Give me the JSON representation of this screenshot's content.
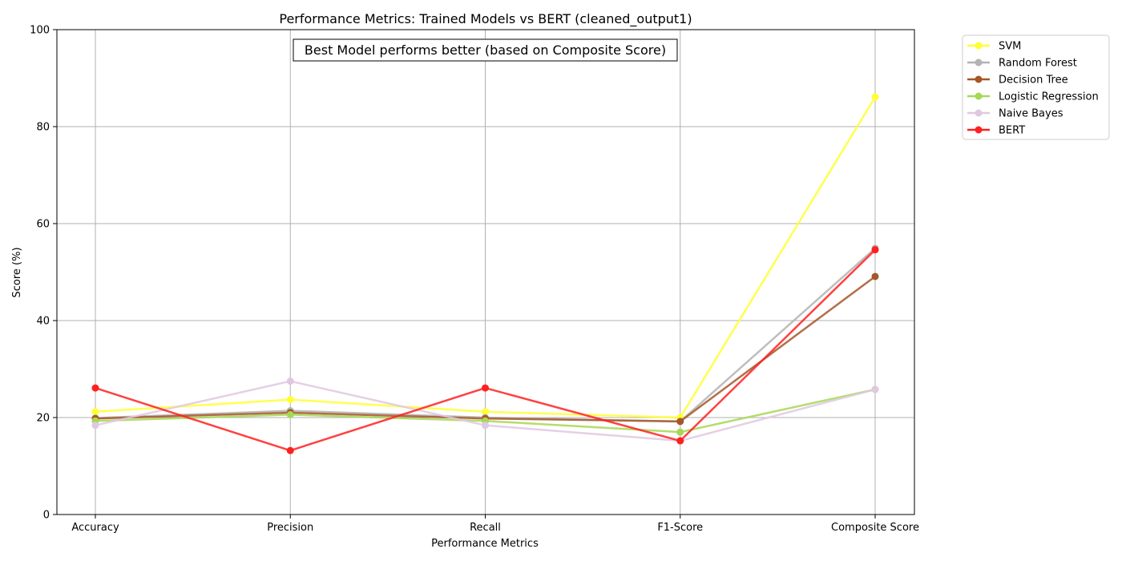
{
  "chart_data": {
    "type": "line",
    "title": "Performance Metrics: Trained Models vs BERT (cleaned_output1)",
    "xlabel": "Performance Metrics",
    "ylabel": "Score (%)",
    "categories": [
      "Accuracy",
      "Precision",
      "Recall",
      "F1-Score",
      "Composite Score"
    ],
    "ylim": [
      0,
      100
    ],
    "yticks": [
      0,
      20,
      40,
      60,
      80,
      100
    ],
    "grid": true,
    "legend_position": "outside-top-right",
    "annotation": "Best Model performs better (based on Composite Score)",
    "series": [
      {
        "name": "SVM",
        "color": "#ffff33",
        "values": [
          21.2,
          23.7,
          21.2,
          20.0,
          86.1
        ]
      },
      {
        "name": "Random Forest",
        "color": "#b3b3b3",
        "values": [
          19.9,
          21.4,
          20.0,
          19.2,
          54.9
        ]
      },
      {
        "name": "Decision Tree",
        "color": "#a65628",
        "values": [
          19.8,
          21.0,
          19.8,
          19.2,
          49.1
        ]
      },
      {
        "name": "Logistic Regression",
        "color": "#a6d854",
        "values": [
          19.3,
          20.6,
          19.3,
          17.0,
          25.8
        ]
      },
      {
        "name": "Naive Bayes",
        "color": "#e0c8e0",
        "values": [
          18.4,
          27.5,
          18.4,
          15.2,
          25.8
        ]
      },
      {
        "name": "BERT",
        "color": "#ff2020",
        "values": [
          26.1,
          13.2,
          26.1,
          15.2,
          54.6
        ]
      }
    ]
  }
}
